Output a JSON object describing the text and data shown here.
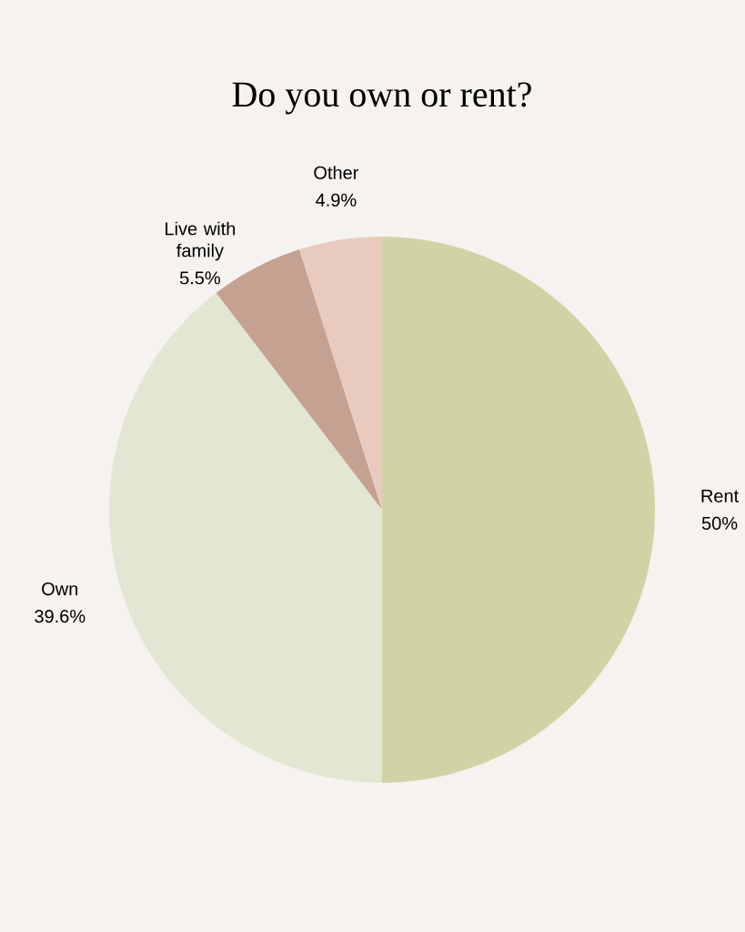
{
  "chart_data": {
    "type": "pie",
    "title": "Do you own or rent?",
    "categories": [
      "Rent",
      "Own",
      "Live with family",
      "Other"
    ],
    "values": [
      50,
      39.6,
      5.5,
      4.9
    ],
    "colors": [
      "#d1d3a7",
      "#e3e6d3",
      "#c5a192",
      "#e8cbbe"
    ],
    "value_labels": [
      "50%",
      "39.6%",
      "5.5%",
      "4.9%"
    ]
  }
}
